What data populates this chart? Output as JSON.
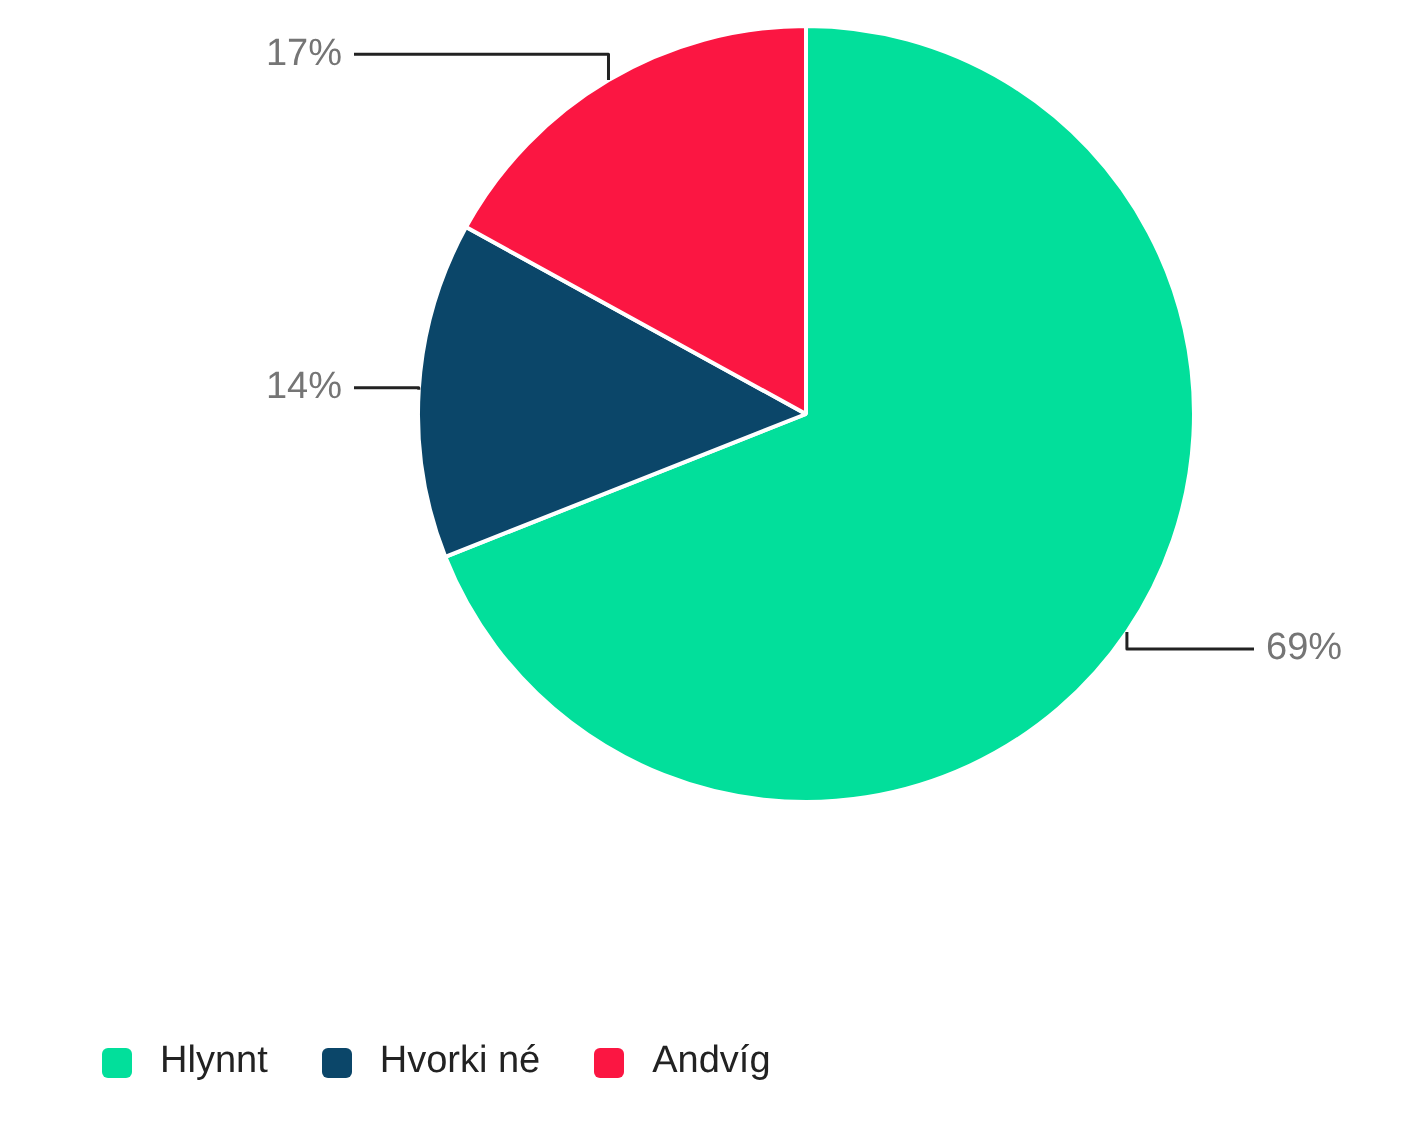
{
  "chart_data": {
    "type": "pie",
    "categories": [
      "Hlynnt",
      "Hvorki né",
      "Andvíg"
    ],
    "values": [
      69,
      14,
      17
    ],
    "colors": [
      "#02df9b",
      "#0b4669",
      "#fb1642"
    ],
    "value_labels": [
      "69%",
      "14%",
      "17%"
    ],
    "legend": "bottom left"
  }
}
